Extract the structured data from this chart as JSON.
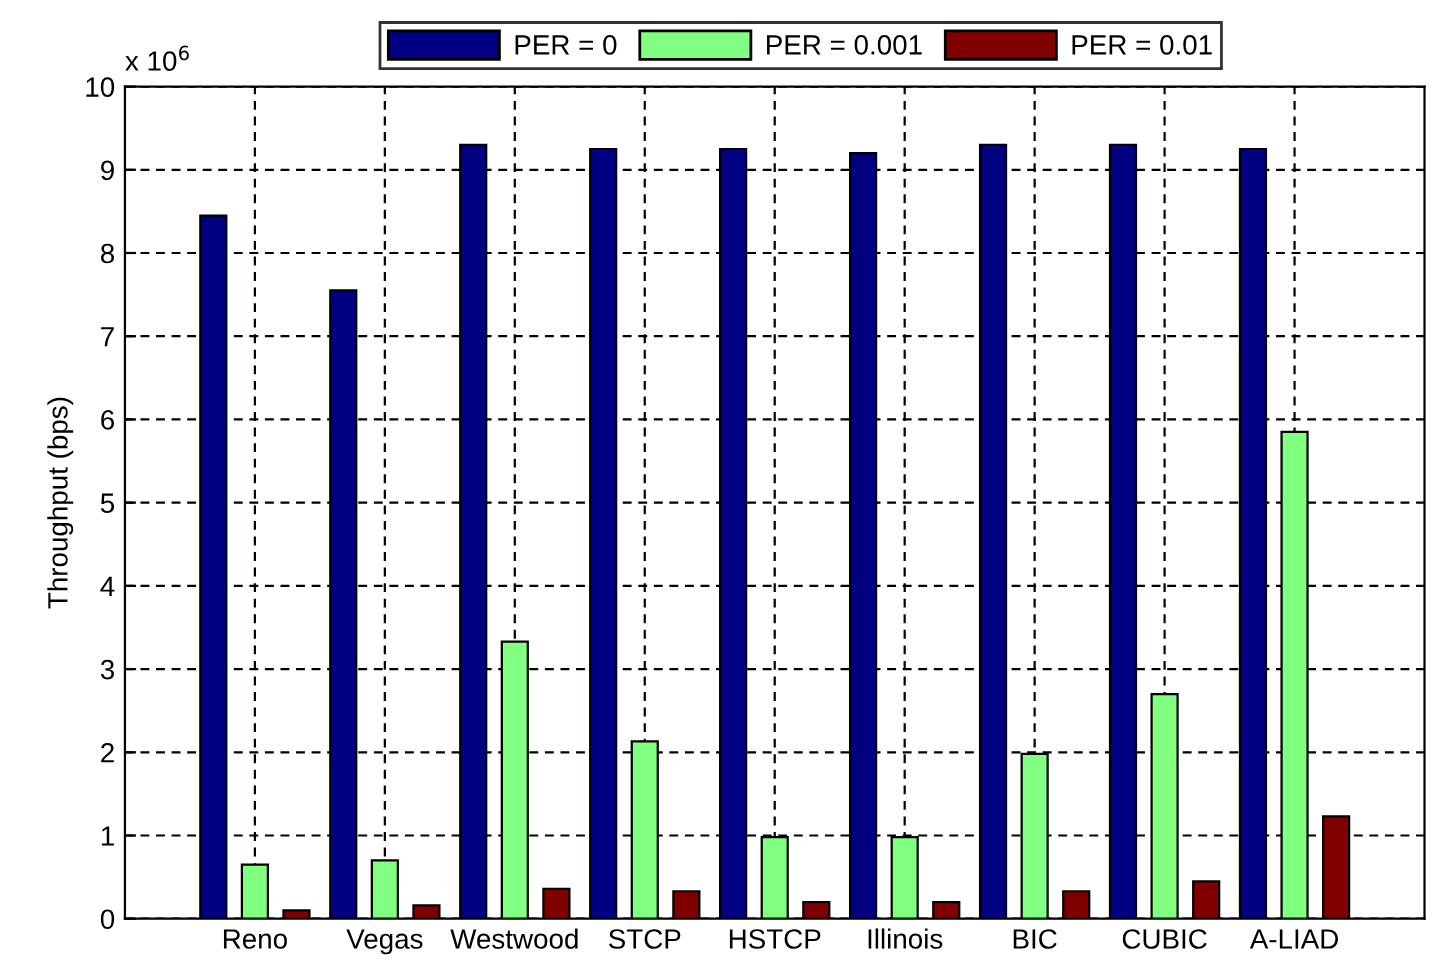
{
  "chart_data": {
    "type": "bar",
    "ylabel": "Throughput (bps)",
    "annotations": [
      "x 10$^{6}$"
    ],
    "categories": [
      "Reno",
      "Vegas",
      "Westwood",
      "STCP",
      "HSTCP",
      "Illinois",
      "BIC",
      "CUBIC",
      "A-LIAD"
    ],
    "series": [
      {
        "name": "PER = 0",
        "color": "#000080",
        "values": [
          8.45,
          7.55,
          9.3,
          9.25,
          9.25,
          9.2,
          9.3,
          9.3,
          9.25
        ]
      },
      {
        "name": "PER = 0.001",
        "color": "#80ff80",
        "values": [
          0.65,
          0.7,
          3.33,
          2.13,
          0.98,
          0.98,
          1.98,
          2.7,
          5.85
        ]
      },
      {
        "name": "PER = 0.01",
        "color": "#800000",
        "values": [
          0.1,
          0.16,
          0.36,
          0.33,
          0.2,
          0.2,
          0.33,
          0.45,
          1.23
        ]
      }
    ],
    "ylim": [
      0,
      10
    ],
    "yticks": [
      0,
      1,
      2,
      3,
      4,
      5,
      6,
      7,
      8,
      9,
      10
    ],
    "grid": true,
    "legend": "top"
  }
}
